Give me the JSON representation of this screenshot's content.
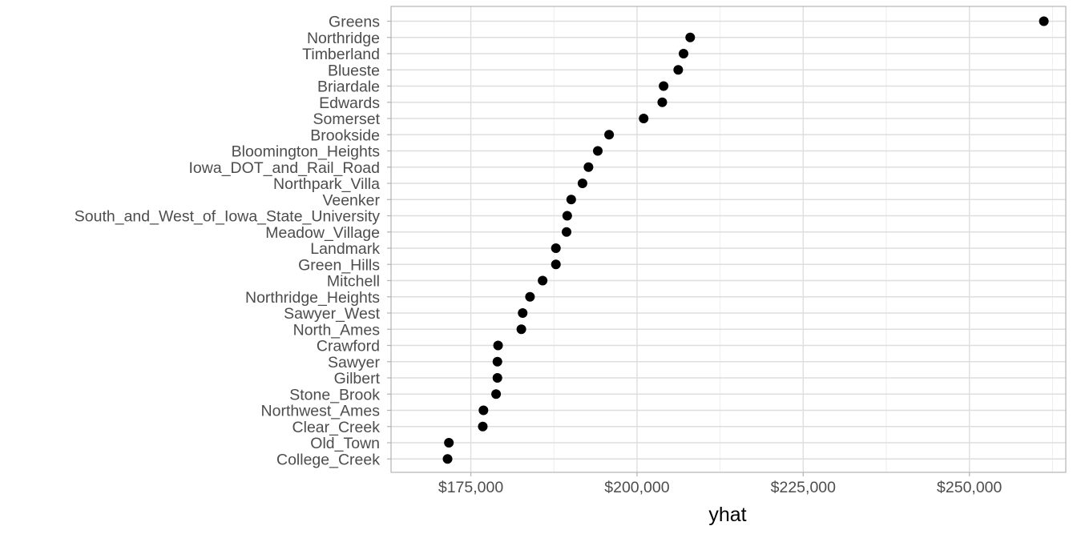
{
  "chart_data": {
    "type": "scatter",
    "title": "",
    "xlabel": "yhat",
    "ylabel": "",
    "xlim": [
      163000,
      264500
    ],
    "x_ticks": [
      175000,
      200000,
      225000,
      250000
    ],
    "x_tick_labels": [
      "$175,000",
      "$200,000",
      "$225,000",
      "$250,000"
    ],
    "x_minor_ticks": [
      187500,
      212500,
      237500,
      262500
    ],
    "grid": true,
    "legend": "none",
    "point_color": "#000000",
    "categories": [
      "Greens",
      "Northridge",
      "Timberland",
      "Blueste",
      "Briardale",
      "Edwards",
      "Somerset",
      "Brookside",
      "Bloomington_Heights",
      "Iowa_DOT_and_Rail_Road",
      "Northpark_Villa",
      "Veenker",
      "South_and_West_of_Iowa_State_University",
      "Meadow_Village",
      "Landmark",
      "Green_Hills",
      "Mitchell",
      "Northridge_Heights",
      "Sawyer_West",
      "North_Ames",
      "Crawford",
      "Sawyer",
      "Gilbert",
      "Stone_Brook",
      "Northwest_Ames",
      "Clear_Creek",
      "Old_Town",
      "College_Creek"
    ],
    "values": [
      261200,
      208000,
      207000,
      206200,
      204000,
      203800,
      201000,
      195800,
      194100,
      192700,
      191800,
      190100,
      189500,
      189400,
      187800,
      187800,
      185800,
      183900,
      182800,
      182600,
      179100,
      179000,
      179000,
      178800,
      176900,
      176800,
      171700,
      171500
    ]
  }
}
